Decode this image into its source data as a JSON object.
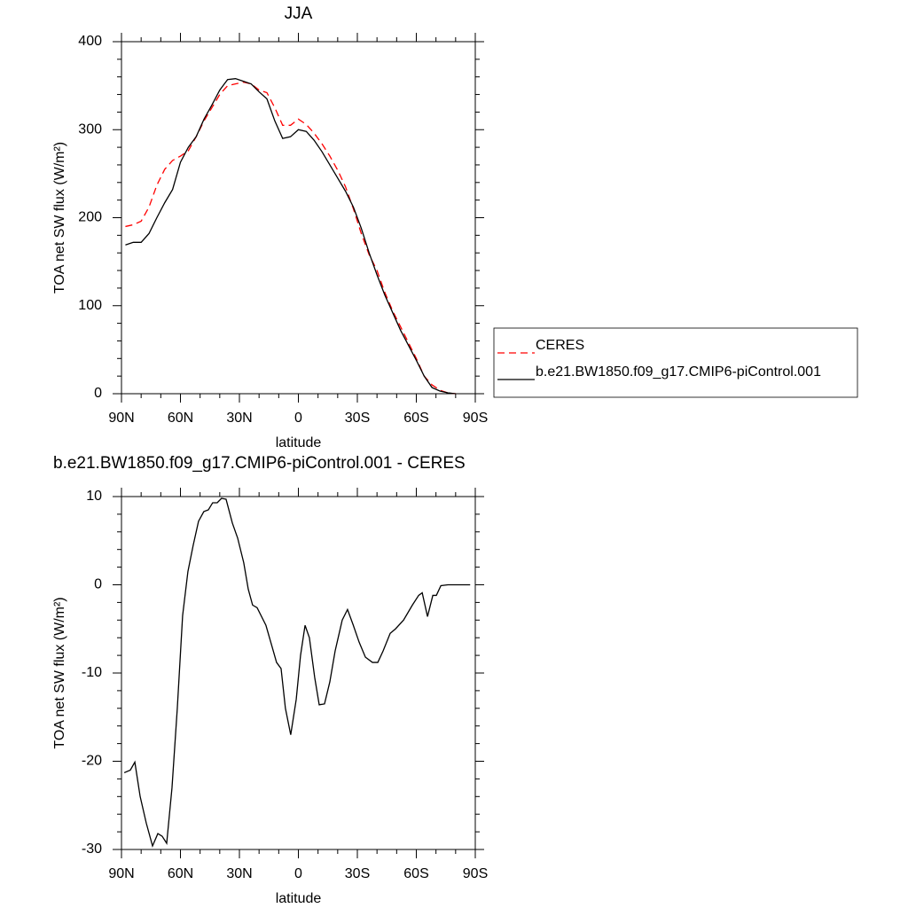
{
  "chart_data": [
    {
      "type": "line",
      "title": "JJA",
      "xlabel": "latitude",
      "ylabel": "TOA net SW flux (W/m²)",
      "x": [
        88,
        84,
        80,
        76,
        72,
        68,
        64,
        60,
        56,
        52,
        48,
        44,
        40,
        36,
        32,
        28,
        24,
        20,
        16,
        12,
        8,
        4,
        0,
        -4,
        -8,
        -12,
        -16,
        -20,
        -24,
        -28,
        -32,
        -36,
        -40,
        -44,
        -48,
        -52,
        -56,
        -60,
        -64,
        -68,
        -72,
        -76,
        -80
      ],
      "series": [
        {
          "name": "CERES",
          "color": "#ff0000",
          "linestyle": "dashed",
          "values": [
            190,
            192,
            196,
            212,
            237,
            255,
            265,
            270,
            276,
            292,
            310,
            325,
            340,
            350,
            352,
            354,
            352,
            345,
            342,
            325,
            305,
            305,
            312,
            306,
            296,
            284,
            270,
            254,
            235,
            210,
            182,
            158,
            140,
            115,
            94,
            76,
            58,
            40,
            20,
            10,
            4,
            1,
            0
          ]
        },
        {
          "name": "b.e21.BW1850.f09_g17.CMIP6-piControl.001",
          "color": "#000000",
          "linestyle": "solid",
          "values": [
            169,
            172,
            172,
            182,
            200,
            217,
            232,
            263,
            280,
            292,
            312,
            328,
            345,
            357,
            358,
            355,
            352,
            343,
            335,
            310,
            290,
            292,
            300,
            298,
            288,
            275,
            260,
            245,
            230,
            212,
            188,
            160,
            135,
            112,
            92,
            72,
            55,
            38,
            20,
            7,
            3,
            1,
            0
          ]
        }
      ],
      "xlim": [
        90,
        -90
      ],
      "xticks": [
        {
          "value": 90,
          "label": "90N"
        },
        {
          "value": 60,
          "label": "60N"
        },
        {
          "value": 30,
          "label": "30N"
        },
        0,
        {
          "value": -30,
          "label": "30S"
        },
        {
          "value": -60,
          "label": "60S"
        },
        {
          "value": -90,
          "label": "90S"
        }
      ],
      "ylim": [
        0,
        400
      ],
      "yticks": [
        0,
        100,
        200,
        300,
        400
      ],
      "legend": "right"
    },
    {
      "type": "line",
      "title": "b.e21.BW1850.f09_g17.CMIP6-piControl.001 - CERES",
      "xlabel": "latitude",
      "ylabel": "TOA net SW flux (W/m²)",
      "x": [
        88.6,
        85.5,
        83.2,
        80.5,
        77.4,
        74.2,
        71.5,
        69.3,
        67.0,
        64.3,
        61.6,
        58.9,
        56.2,
        53.5,
        50.8,
        48.1,
        45.8,
        43.6,
        41.3,
        39.1,
        36.8,
        33.6,
        30.9,
        27.8,
        25.5,
        23.3,
        21.0,
        16.5,
        13.4,
        11.1,
        8.8,
        6.6,
        3.9,
        1.1,
        -1.1,
        -3.4,
        -5.6,
        -8.3,
        -10.6,
        -13.3,
        -16.0,
        -18.7,
        -22.3,
        -25.0,
        -27.8,
        -30.9,
        -34.1,
        -37.7,
        -40.4,
        -43.1,
        -46.7,
        -49.4,
        -53.5,
        -58.0,
        -61.2,
        -63.0,
        -65.7,
        -68.4,
        -70.2,
        -72.5,
        -76.1,
        -80.6,
        -87.4
      ],
      "values": [
        -21.3,
        -21,
        -20.1,
        -24,
        -27,
        -29.6,
        -28.2,
        -28.5,
        -29.3,
        -23,
        -14,
        -3.5,
        1.5,
        4.5,
        7.2,
        8.3,
        8.5,
        9.3,
        9.3,
        9.8,
        9.7,
        7,
        5.3,
        2.5,
        -0.5,
        -2.3,
        -2.6,
        -4.6,
        -7,
        -8.8,
        -9.5,
        -14,
        -17,
        -13,
        -8,
        -4.6,
        -6,
        -10.5,
        -13.6,
        -13.5,
        -11,
        -7.5,
        -4,
        -2.8,
        -4.5,
        -6.5,
        -8.2,
        -8.8,
        -8.8,
        -7.5,
        -5.5,
        -5,
        -4,
        -2.3,
        -1.2,
        -0.9,
        -3.6,
        -1.2,
        -1.2,
        -0.1,
        0,
        0,
        0
      ],
      "color": "#000000",
      "xlim": [
        90,
        -90
      ],
      "xticks": [
        {
          "value": 90,
          "label": "90N"
        },
        {
          "value": 60,
          "label": "60N"
        },
        {
          "value": 30,
          "label": "30N"
        },
        0,
        {
          "value": -30,
          "label": "30S"
        },
        {
          "value": -60,
          "label": "60S"
        },
        {
          "value": -90,
          "label": "90S"
        }
      ],
      "ylim": [
        -30,
        10
      ],
      "yticks": [
        -30,
        -20,
        -10,
        0,
        10
      ]
    }
  ]
}
